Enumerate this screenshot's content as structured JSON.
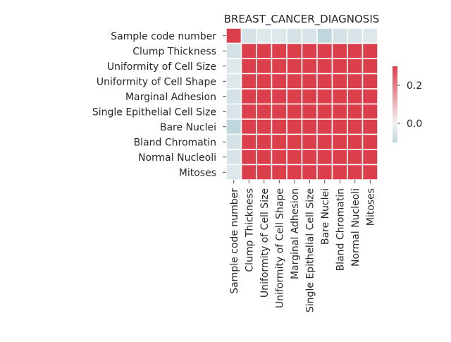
{
  "chart_data": {
    "type": "heatmap",
    "title": "BREAST_CANCER_DIAGNOSIS",
    "xlabel": "",
    "ylabel": "",
    "labels": [
      "Sample code number",
      "Clump Thickness",
      "Uniformity of Cell Size",
      "Uniformity of Cell Shape",
      "Marginal Adhesion",
      "Single Epithelial Cell Size",
      "Bare Nuclei",
      "Bland Chromatin",
      "Normal Nucleoli",
      "Mitoses"
    ],
    "values": [
      [
        1.0,
        -0.06,
        -0.04,
        -0.04,
        -0.06,
        -0.05,
        -0.1,
        -0.06,
        -0.05,
        -0.04
      ],
      [
        -0.06,
        1.0,
        0.64,
        0.65,
        0.49,
        0.52,
        0.59,
        0.56,
        0.54,
        0.35
      ],
      [
        -0.04,
        0.64,
        1.0,
        0.91,
        0.71,
        0.75,
        0.69,
        0.76,
        0.72,
        0.46
      ],
      [
        -0.04,
        0.65,
        0.91,
        1.0,
        0.68,
        0.72,
        0.71,
        0.74,
        0.72,
        0.44
      ],
      [
        -0.06,
        0.49,
        0.71,
        0.68,
        1.0,
        0.6,
        0.67,
        0.67,
        0.6,
        0.42
      ],
      [
        -0.05,
        0.52,
        0.75,
        0.72,
        0.6,
        1.0,
        0.59,
        0.62,
        0.63,
        0.48
      ],
      [
        -0.1,
        0.59,
        0.69,
        0.71,
        0.67,
        0.59,
        1.0,
        0.68,
        0.58,
        0.34
      ],
      [
        -0.06,
        0.56,
        0.76,
        0.74,
        0.67,
        0.62,
        0.68,
        1.0,
        0.67,
        0.34
      ],
      [
        -0.05,
        0.54,
        0.72,
        0.72,
        0.6,
        0.63,
        0.58,
        0.67,
        1.0,
        0.43
      ],
      [
        -0.04,
        0.35,
        0.46,
        0.44,
        0.42,
        0.48,
        0.34,
        0.34,
        0.43,
        1.0
      ]
    ],
    "colorbar": {
      "vmin": -0.1,
      "vmax": 0.3,
      "ticks": [
        0.0,
        0.2
      ],
      "tick_labels": [
        "0.0",
        "0.2"
      ],
      "colors": {
        "low": "#c0d6dd",
        "mid": "#f2f2f2",
        "high": "#dc3f4c"
      }
    },
    "grid": false,
    "cell_border_color": "#ffffff"
  }
}
